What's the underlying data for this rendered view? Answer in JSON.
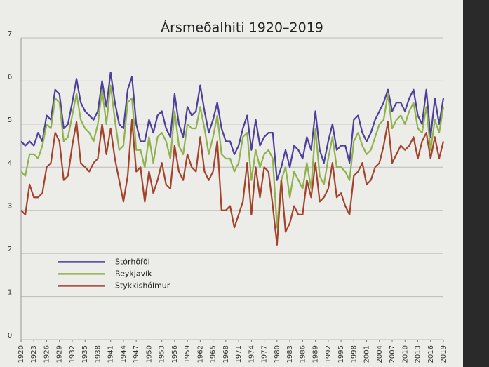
{
  "chart_data": {
    "type": "line",
    "title": "Ársmeðalhiti 1920–2019",
    "x": [
      1920,
      1921,
      1922,
      1923,
      1924,
      1925,
      1926,
      1927,
      1928,
      1929,
      1930,
      1931,
      1932,
      1933,
      1934,
      1935,
      1936,
      1937,
      1938,
      1939,
      1940,
      1941,
      1942,
      1943,
      1944,
      1945,
      1946,
      1947,
      1948,
      1949,
      1950,
      1951,
      1952,
      1953,
      1954,
      1955,
      1956,
      1957,
      1958,
      1959,
      1960,
      1961,
      1962,
      1963,
      1964,
      1965,
      1966,
      1967,
      1968,
      1969,
      1970,
      1971,
      1972,
      1973,
      1974,
      1975,
      1976,
      1977,
      1978,
      1979,
      1980,
      1981,
      1982,
      1983,
      1984,
      1985,
      1986,
      1987,
      1988,
      1989,
      1990,
      1991,
      1992,
      1993,
      1994,
      1995,
      1996,
      1997,
      1998,
      1999,
      2000,
      2001,
      2002,
      2003,
      2004,
      2005,
      2006,
      2007,
      2008,
      2009,
      2010,
      2011,
      2012,
      2013,
      2014,
      2015,
      2016,
      2017,
      2018,
      2019
    ],
    "series": [
      {
        "name": "Stórhöfði",
        "color": "#4e3f9c",
        "values": [
          4.6,
          4.5,
          4.6,
          4.5,
          4.8,
          4.6,
          5.2,
          5.1,
          5.8,
          5.7,
          4.9,
          5.0,
          5.5,
          6.05,
          5.5,
          5.3,
          5.2,
          5.1,
          5.3,
          6.0,
          5.4,
          6.2,
          5.5,
          5.0,
          4.9,
          5.8,
          6.1,
          5.0,
          4.6,
          4.6,
          5.1,
          4.8,
          5.2,
          5.3,
          4.9,
          4.7,
          5.7,
          5.0,
          4.7,
          5.4,
          5.2,
          5.3,
          5.9,
          5.3,
          4.8,
          5.1,
          5.5,
          4.9,
          4.6,
          4.6,
          4.3,
          4.5,
          4.9,
          5.2,
          4.4,
          5.1,
          4.5,
          4.7,
          4.8,
          4.8,
          3.7,
          4.0,
          4.4,
          4.0,
          4.5,
          4.4,
          4.2,
          4.7,
          4.4,
          5.3,
          4.4,
          4.1,
          4.6,
          5.0,
          4.4,
          4.5,
          4.5,
          4.1,
          5.1,
          5.2,
          4.8,
          4.6,
          4.8,
          5.1,
          5.3,
          5.5,
          5.8,
          5.3,
          5.5,
          5.5,
          5.3,
          5.6,
          5.8,
          5.2,
          5.0,
          5.8,
          4.7,
          5.6,
          5.0,
          5.6
        ]
      },
      {
        "name": "Reykjavík",
        "color": "#8fb24c",
        "values": [
          3.9,
          3.8,
          4.3,
          4.3,
          4.2,
          4.5,
          5.0,
          4.9,
          5.6,
          5.5,
          4.6,
          4.7,
          5.2,
          5.7,
          5.1,
          4.9,
          4.8,
          4.6,
          5.0,
          5.8,
          5.0,
          5.9,
          5.1,
          4.4,
          4.5,
          5.5,
          5.6,
          4.4,
          4.4,
          4.0,
          4.7,
          4.1,
          4.7,
          4.8,
          4.6,
          4.2,
          5.3,
          4.5,
          4.3,
          5.0,
          4.9,
          4.9,
          5.4,
          4.9,
          4.3,
          4.7,
          5.2,
          4.3,
          4.2,
          4.2,
          3.9,
          4.1,
          4.7,
          4.8,
          3.7,
          4.4,
          4.0,
          4.3,
          4.4,
          4.2,
          2.6,
          3.7,
          4.0,
          3.3,
          3.9,
          3.7,
          3.5,
          4.1,
          3.5,
          4.9,
          3.8,
          3.6,
          4.2,
          4.7,
          4.0,
          4.0,
          3.9,
          3.7,
          4.6,
          4.8,
          4.5,
          4.3,
          4.4,
          4.7,
          5.0,
          5.1,
          5.7,
          4.9,
          5.1,
          5.2,
          5.0,
          5.3,
          5.5,
          4.9,
          4.8,
          5.4,
          4.4,
          5.1,
          4.8,
          5.4
        ]
      },
      {
        "name": "Stykkishólmur",
        "color": "#a3432c",
        "values": [
          3.0,
          2.9,
          3.6,
          3.3,
          3.3,
          3.4,
          4.0,
          4.1,
          4.8,
          4.6,
          3.7,
          3.8,
          4.5,
          5.05,
          4.1,
          4.0,
          3.9,
          4.1,
          4.2,
          5.0,
          4.3,
          4.9,
          4.2,
          3.7,
          3.2,
          3.8,
          5.1,
          3.9,
          4.0,
          3.2,
          3.9,
          3.4,
          3.7,
          4.1,
          3.6,
          3.5,
          4.5,
          3.9,
          3.7,
          4.3,
          4.0,
          3.9,
          4.7,
          3.9,
          3.7,
          3.9,
          4.6,
          3.0,
          3.0,
          3.1,
          2.6,
          2.9,
          3.2,
          4.1,
          2.9,
          4.0,
          3.3,
          4.0,
          3.9,
          3.1,
          2.2,
          3.7,
          2.5,
          2.7,
          3.1,
          2.9,
          2.9,
          3.7,
          3.3,
          4.1,
          3.2,
          3.3,
          3.5,
          4.1,
          3.3,
          3.4,
          3.1,
          2.9,
          3.8,
          3.9,
          4.1,
          3.6,
          3.7,
          4.0,
          4.1,
          4.5,
          5.05,
          4.1,
          4.3,
          4.5,
          4.4,
          4.5,
          4.7,
          4.2,
          4.6,
          4.8,
          4.2,
          4.7,
          4.2,
          4.6
        ]
      }
    ],
    "xlim": [
      1920,
      2019
    ],
    "xticks": [
      1920,
      1923,
      1926,
      1929,
      1932,
      1935,
      1938,
      1941,
      1944,
      1947,
      1950,
      1953,
      1956,
      1959,
      1962,
      1965,
      1968,
      1971,
      1974,
      1977,
      1980,
      1983,
      1986,
      1989,
      1992,
      1995,
      1998,
      2001,
      2004,
      2007,
      2010,
      2013,
      2016,
      2019
    ],
    "ylim": [
      0,
      7
    ],
    "yticks": [
      0,
      1,
      2,
      3,
      4,
      5,
      6,
      7
    ],
    "grid": true,
    "legend": "lower left"
  }
}
